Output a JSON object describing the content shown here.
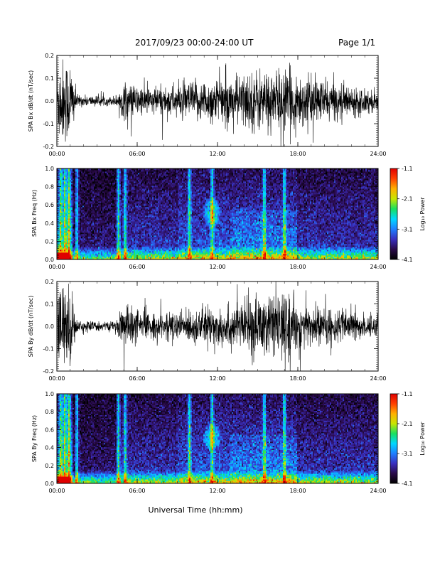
{
  "header": {
    "title": "2017/09/23  00:00-24:00 UT",
    "page": "Page 1/1"
  },
  "footer": {
    "xlabel": "Universal Time (hh:mm)"
  },
  "colorbar": {
    "ticks": [
      "-1.1",
      "-2.1",
      "-3.1",
      "-4.1"
    ],
    "label": "Log₁₀ Power",
    "range": [
      -4.1,
      -1.1
    ],
    "stops": [
      "#000000",
      "#2a0a4a",
      "#3a2fbf",
      "#1e7fff",
      "#00d8ff",
      "#18e060",
      "#c8e600",
      "#ffb000",
      "#ff4000",
      "#e00000"
    ]
  },
  "x_ticks": [
    "00:00",
    "06:00",
    "12:00",
    "18:00",
    "24:00"
  ],
  "chart_data": [
    {
      "type": "line",
      "ylabel": "SPA Bx dB/dt (nT/sec)",
      "xlim": [
        0,
        24
      ],
      "ylim": [
        -0.2,
        0.2
      ],
      "y_ticks": [
        "0.2",
        "0.1",
        "0.0",
        "-0.1",
        "-0.2"
      ],
      "x_ticks": [
        "00:00",
        "06:00",
        "12:00",
        "18:00",
        "24:00"
      ],
      "series": [
        {
          "x": [
            0,
            1,
            1.5,
            2,
            3,
            4,
            4.5,
            5,
            6,
            7,
            8,
            9,
            10,
            11,
            12,
            13,
            14,
            15,
            16,
            17,
            18,
            19,
            20,
            21,
            22,
            23,
            24
          ],
          "amplitude": [
            0.2,
            0.2,
            0.03,
            0.025,
            0.025,
            0.02,
            0.03,
            0.09,
            0.07,
            0.07,
            0.07,
            0.08,
            0.09,
            0.1,
            0.11,
            0.11,
            0.13,
            0.15,
            0.14,
            0.15,
            0.13,
            0.11,
            0.1,
            0.08,
            0.07,
            0.06,
            0.05
          ]
        }
      ]
    },
    {
      "type": "heatmap",
      "ylabel": "SPA Bx Freq (Hz)",
      "xlim": [
        0,
        24
      ],
      "ylim": [
        0,
        1
      ],
      "y_ticks": [
        "1.0",
        "0.8",
        "0.6",
        "0.4",
        "0.2",
        "0.0"
      ],
      "x_ticks": [
        "00:00",
        "06:00",
        "12:00",
        "18:00",
        "24:00"
      ],
      "zlim": [
        -4.1,
        -1.1
      ],
      "features": {
        "bright_columns_hours": [
          0.3,
          0.6,
          0.9,
          1.5,
          4.6,
          5.1,
          9.9,
          11.6,
          15.5,
          17.0
        ],
        "blob_hours": [
          11.2,
          12.0
        ],
        "blob_freq_hz": [
          0.4,
          0.7
        ],
        "low_freq_band_hz": [
          0,
          0.15
        ]
      }
    },
    {
      "type": "line",
      "ylabel": "SPA By dB/dt (nT/sec)",
      "xlim": [
        0,
        24
      ],
      "ylim": [
        -0.2,
        0.2
      ],
      "y_ticks": [
        "0.2",
        "0.1",
        "0.0",
        "-0.1",
        "-0.2"
      ],
      "x_ticks": [
        "00:00",
        "06:00",
        "12:00",
        "18:00",
        "24:00"
      ],
      "series": [
        {
          "x": [
            0,
            1,
            1.5,
            2,
            3,
            4,
            4.5,
            5,
            6,
            7,
            8,
            9,
            10,
            11,
            12,
            13,
            14,
            15,
            16,
            17,
            18,
            19,
            20,
            21,
            22,
            23,
            24
          ],
          "amplitude": [
            0.2,
            0.2,
            0.03,
            0.025,
            0.025,
            0.02,
            0.03,
            0.12,
            0.08,
            0.06,
            0.06,
            0.07,
            0.08,
            0.09,
            0.1,
            0.1,
            0.12,
            0.15,
            0.16,
            0.15,
            0.12,
            0.1,
            0.09,
            0.08,
            0.07,
            0.06,
            0.05
          ]
        }
      ]
    },
    {
      "type": "heatmap",
      "ylabel": "SPA By Freq (Hz)",
      "xlim": [
        0,
        24
      ],
      "ylim": [
        0,
        1
      ],
      "y_ticks": [
        "1.0",
        "0.8",
        "0.6",
        "0.4",
        "0.2",
        "0.0"
      ],
      "x_ticks": [
        "00:00",
        "06:00",
        "12:00",
        "18:00",
        "24:00"
      ],
      "zlim": [
        -4.1,
        -1.1
      ],
      "features": {
        "bright_columns_hours": [
          0.3,
          0.6,
          0.9,
          1.5,
          4.6,
          5.1,
          9.9,
          11.6,
          15.5,
          17.0
        ],
        "blob_hours": [
          11.2,
          12.0
        ],
        "blob_freq_hz": [
          0.4,
          0.7
        ],
        "low_freq_band_hz": [
          0,
          0.15
        ]
      }
    }
  ]
}
